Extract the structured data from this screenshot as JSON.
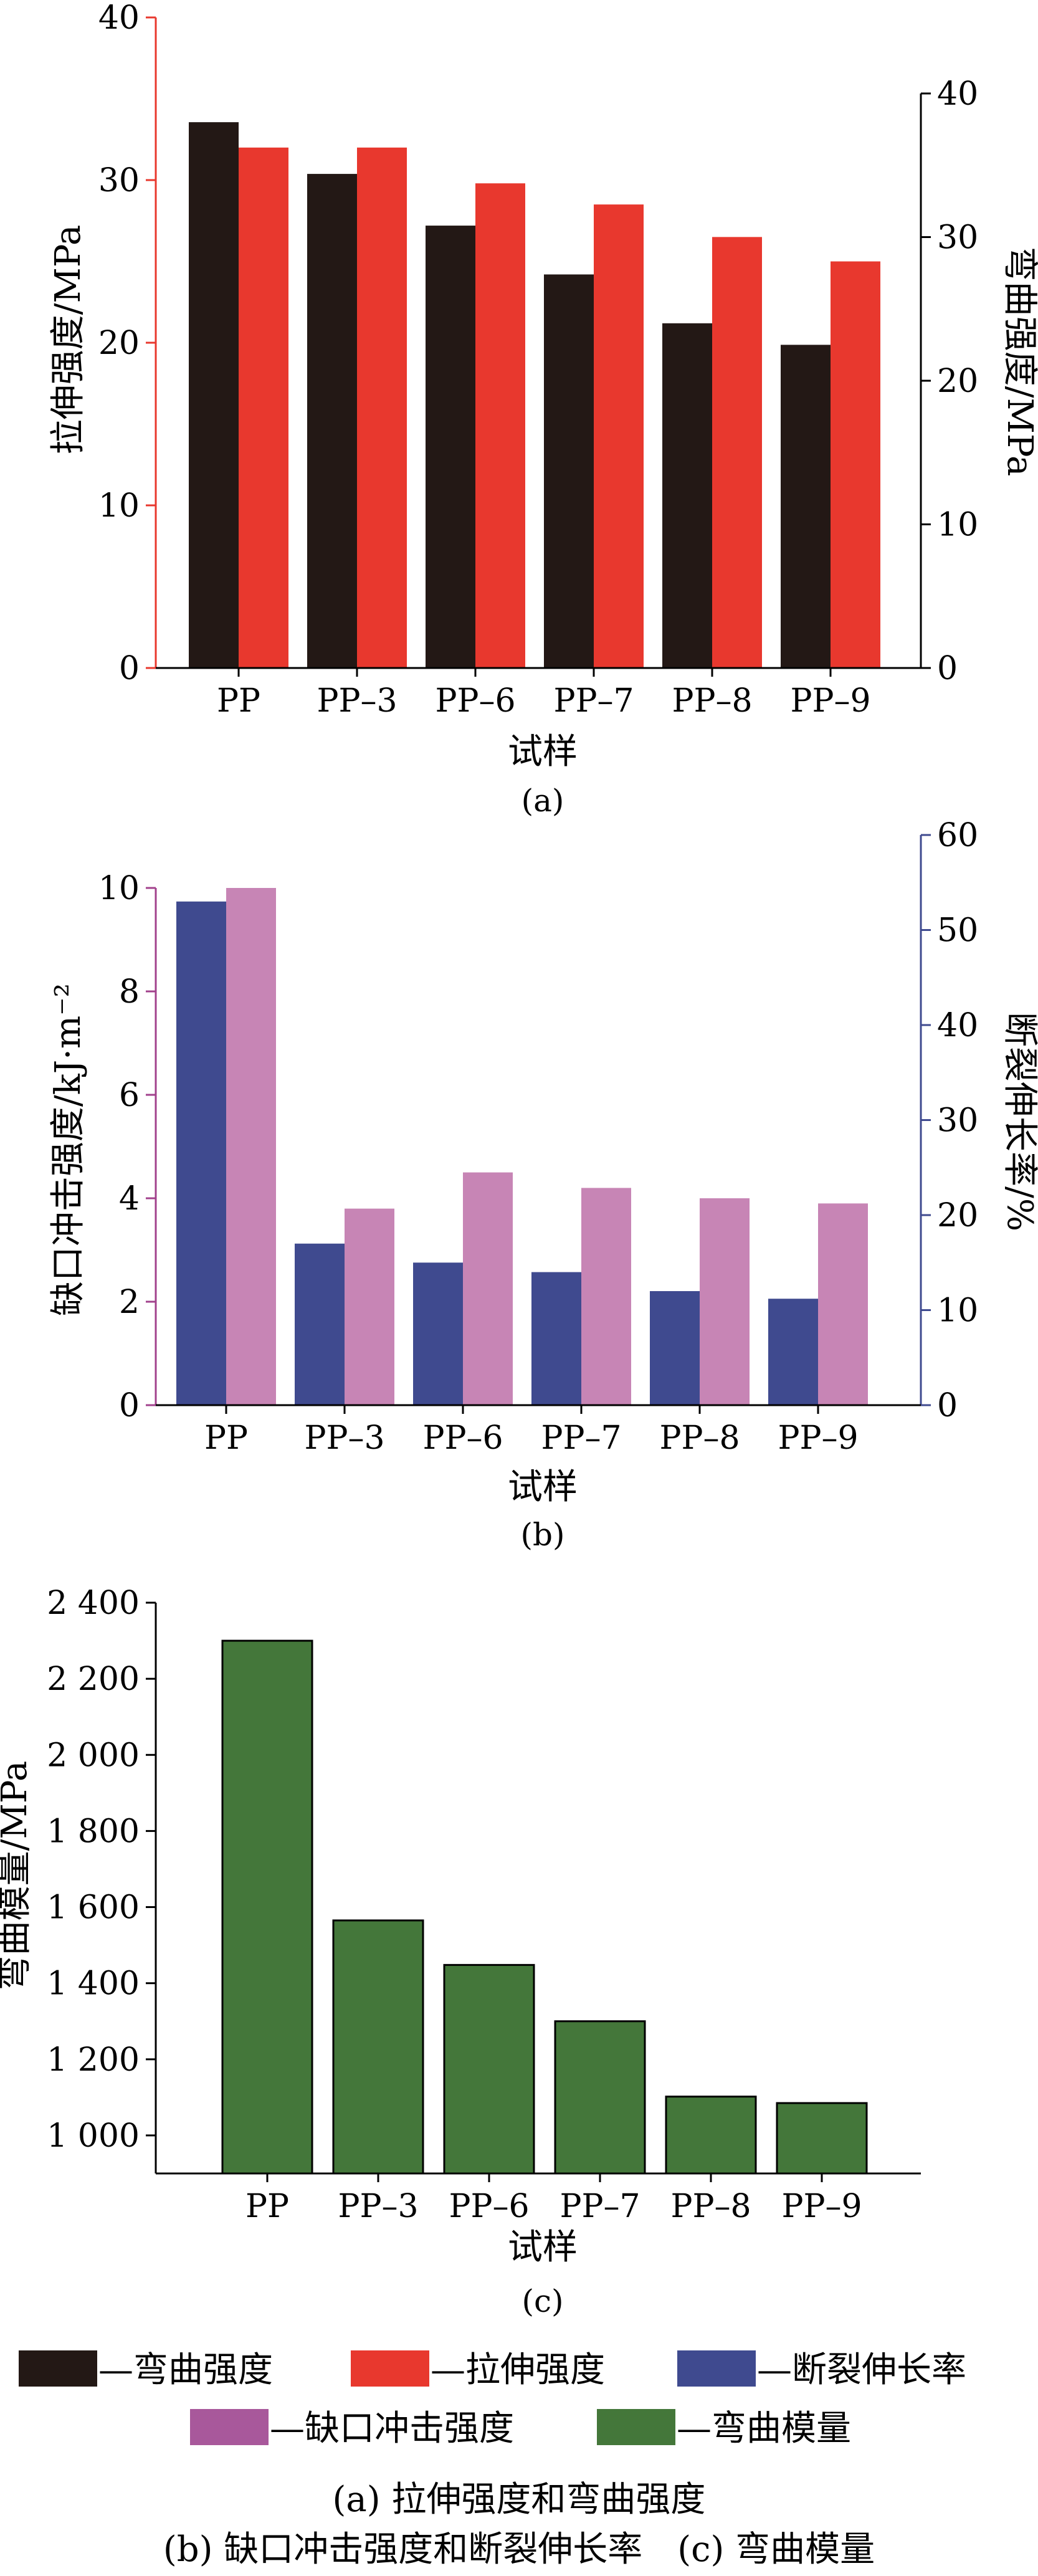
{
  "chart_data": [
    {
      "panel_label": "(a)",
      "type": "bar",
      "categories": [
        "PP",
        "PP–3",
        "PP–6",
        "PP–7",
        "PP–8",
        "PP–9"
      ],
      "series": [
        {
          "name": "弯曲强度",
          "axis": "right",
          "color": "#231815",
          "values": [
            38.0,
            34.4,
            30.8,
            27.4,
            24.0,
            22.5
          ]
        },
        {
          "name": "拉伸强度",
          "axis": "left",
          "color": "#e8382e",
          "values": [
            32.0,
            32.0,
            29.8,
            28.5,
            26.5,
            25.0
          ]
        }
      ],
      "xlabel": "试样",
      "ylabel_left": "拉伸强度/MPa",
      "ylabel_right": "弯曲强度/MPa",
      "ylim_left": [
        0,
        40
      ],
      "yticks_left": [
        "0",
        "10",
        "20",
        "30",
        "40"
      ],
      "ylim_right": [
        0,
        40
      ],
      "yticks_right": [
        "0",
        "10",
        "20",
        "30",
        "40"
      ],
      "left_axis_color": "#e8382e",
      "grid": false
    },
    {
      "panel_label": "(b)",
      "type": "bar",
      "categories": [
        "PP",
        "PP–3",
        "PP–6",
        "PP–7",
        "PP–8",
        "PP–9"
      ],
      "series": [
        {
          "name": "断裂伸长率",
          "axis": "right",
          "color": "#3f4a8f",
          "values": [
            53.0,
            17.0,
            15.0,
            14.0,
            12.0,
            11.2
          ]
        },
        {
          "name": "缺口冲击强度",
          "axis": "left",
          "color": "#c785b5",
          "values": [
            10.0,
            3.8,
            4.5,
            4.2,
            4.0,
            3.9
          ]
        }
      ],
      "xlabel": "试样",
      "ylabel_left": "缺口冲击强度/kJ·m⁻²",
      "ylabel_right": "断裂伸长率/%",
      "ylim_left": [
        0,
        10
      ],
      "yticks_left": [
        "0",
        "2",
        "4",
        "6",
        "8",
        "10"
      ],
      "ylim_right": [
        0,
        60
      ],
      "yticks_right": [
        "0",
        "10",
        "20",
        "30",
        "40",
        "50",
        "60"
      ],
      "left_axis_color": "#a2418c",
      "right_axis_color": "#3f4a8f",
      "grid": false
    },
    {
      "panel_label": "(c)",
      "type": "bar",
      "categories": [
        "PP",
        "PP–3",
        "PP–6",
        "PP–7",
        "PP–8",
        "PP–9"
      ],
      "series": [
        {
          "name": "弯曲模量",
          "axis": "left",
          "color": "#44773a",
          "values": [
            2300,
            1565,
            1448,
            1300,
            1102,
            1085
          ]
        }
      ],
      "xlabel": "试样",
      "ylabel_left": "弯曲模量/MPa",
      "ylim_left": [
        900,
        2400
      ],
      "ytick_values": [
        1000,
        1200,
        1400,
        1600,
        1800,
        2000,
        2200,
        2400
      ],
      "yticks_left": [
        "1 000",
        "1 200",
        "1 400",
        "1 600",
        "1 800",
        "2 000",
        "2 200",
        "2 400"
      ],
      "grid": false
    }
  ],
  "legend": [
    {
      "label": "—弯曲强度",
      "color": "#231815"
    },
    {
      "label": "—拉伸强度",
      "color": "#e8382e"
    },
    {
      "label": "—断裂伸长率",
      "color": "#3f4a8f"
    },
    {
      "label": "—缺口冲击强度",
      "color": "#a8589b"
    },
    {
      "label": "—弯曲模量",
      "color": "#44773a"
    }
  ],
  "caption": {
    "line1": "(a) 拉伸强度和弯曲强度",
    "line2": "(b) 缺口冲击强度和断裂伸长率　(c) 弯曲模量"
  }
}
